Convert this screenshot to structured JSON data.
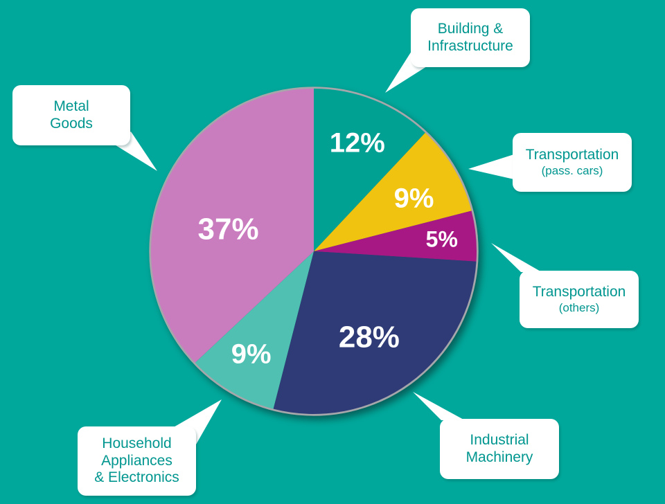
{
  "colors": {
    "background": "#00A89B",
    "callout_background": "#FFFFFF",
    "callout_text": "#00968F",
    "pie_rim": "#A5A7AA",
    "value_label": "#FFFFFF"
  },
  "chart_data": {
    "type": "pie",
    "unit": "percent",
    "total": 100,
    "start_angle_deg": 0,
    "direction": "clockwise",
    "legend_position": "callouts-around-pie",
    "value_label_color": "#FFFFFF",
    "slices": [
      {
        "name": "Building & Infrastructure",
        "value": 12,
        "display": "12%",
        "color": "#00A093"
      },
      {
        "name": "Transportation (pass. cars)",
        "value": 9,
        "display": "9%",
        "color": "#F0C311"
      },
      {
        "name": "Transportation (others)",
        "value": 5,
        "display": "5%",
        "color": "#A81884"
      },
      {
        "name": "Industrial Machinery",
        "value": 28,
        "display": "28%",
        "color": "#2E3B76"
      },
      {
        "name": "Household Appliances & Electronics",
        "value": 9,
        "display": "9%",
        "color": "#4FC0B1"
      },
      {
        "name": "Metal Goods",
        "value": 37,
        "display": "37%",
        "color": "#C97CBE"
      }
    ]
  },
  "callouts": [
    {
      "id": "building-infrastructure",
      "lines": [
        "Building &",
        "Infrastructure"
      ]
    },
    {
      "id": "transportation-pass-cars",
      "lines": [
        "Transportation",
        "(pass. cars)"
      ]
    },
    {
      "id": "transportation-others",
      "lines": [
        "Transportation",
        "(others)"
      ]
    },
    {
      "id": "industrial-machinery",
      "lines": [
        "Industrial",
        "Machinery"
      ]
    },
    {
      "id": "household-appliances-electronics",
      "lines": [
        "Household",
        "Appliances",
        "& Electronics"
      ]
    },
    {
      "id": "metal-goods",
      "lines": [
        "Metal",
        "Goods"
      ]
    }
  ]
}
